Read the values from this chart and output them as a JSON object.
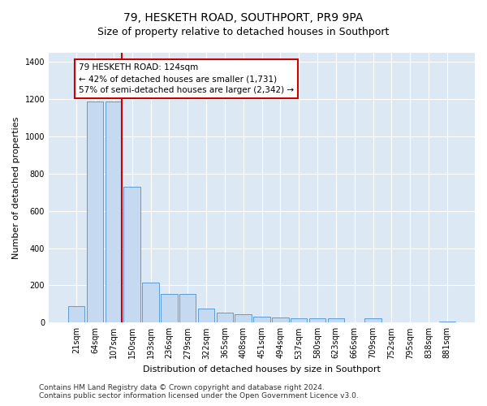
{
  "title": "79, HESKETH ROAD, SOUTHPORT, PR9 9PA",
  "subtitle": "Size of property relative to detached houses in Southport",
  "xlabel": "Distribution of detached houses by size in Southport",
  "ylabel": "Number of detached properties",
  "categories": [
    "21sqm",
    "64sqm",
    "107sqm",
    "150sqm",
    "193sqm",
    "236sqm",
    "279sqm",
    "322sqm",
    "365sqm",
    "408sqm",
    "451sqm",
    "494sqm",
    "537sqm",
    "580sqm",
    "623sqm",
    "666sqm",
    "709sqm",
    "752sqm",
    "795sqm",
    "838sqm",
    "881sqm"
  ],
  "values": [
    90,
    1190,
    1190,
    730,
    215,
    155,
    155,
    75,
    55,
    45,
    30,
    27,
    25,
    25,
    25,
    0,
    25,
    0,
    0,
    0,
    7
  ],
  "bar_color": "#c5d9f0",
  "bar_edge_color": "#5b9bd5",
  "vline_color": "#cc0000",
  "annotation_line1": "79 HESKETH ROAD: 124sqm",
  "annotation_line2": "← 42% of detached houses are smaller (1,731)",
  "annotation_line3": "57% of semi-detached houses are larger (2,342) →",
  "annotation_box_color": "white",
  "annotation_box_edge": "#cc0000",
  "ylim": [
    0,
    1450
  ],
  "yticks": [
    0,
    200,
    400,
    600,
    800,
    1000,
    1200,
    1400
  ],
  "footer_line1": "Contains HM Land Registry data © Crown copyright and database right 2024.",
  "footer_line2": "Contains public sector information licensed under the Open Government Licence v3.0.",
  "bg_color": "#dde8f5",
  "fig_bg_color": "#ffffff",
  "grid_color": "#ffffff",
  "title_fontsize": 10,
  "subtitle_fontsize": 9,
  "tick_fontsize": 7,
  "ylabel_fontsize": 8,
  "xlabel_fontsize": 8,
  "annotation_fontsize": 7.5,
  "footer_fontsize": 6.5
}
